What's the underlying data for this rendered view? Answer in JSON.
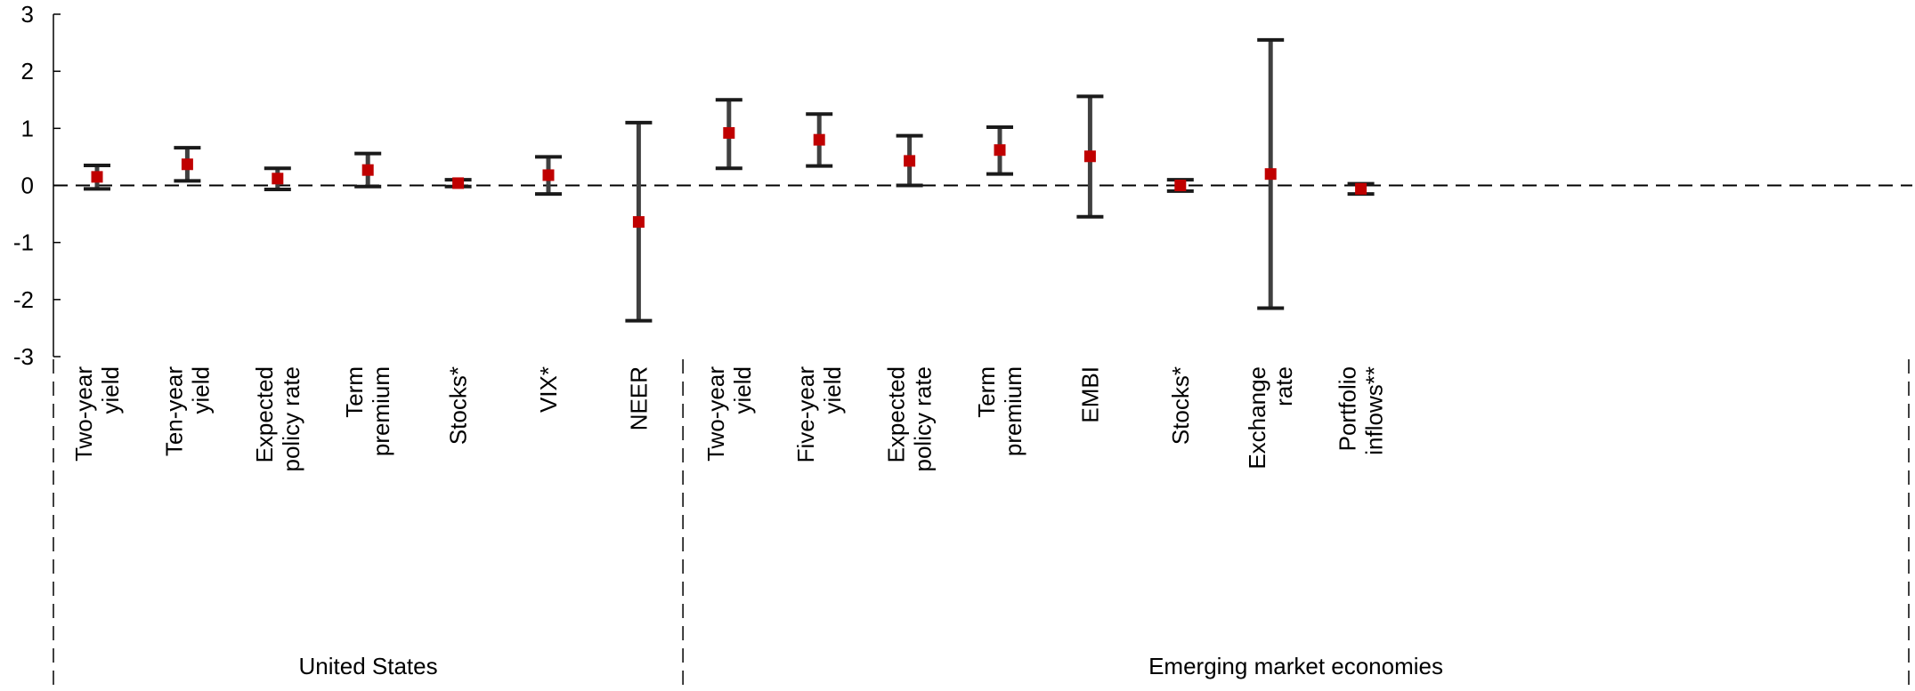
{
  "chart_data": {
    "type": "scatter",
    "title": "",
    "xlabel": "",
    "ylabel": "",
    "ylim": [
      -3,
      3
    ],
    "yticks": [
      3,
      2,
      1,
      0,
      -1,
      -2,
      -3
    ],
    "grid": false,
    "zero_line": "dashed",
    "colors": {
      "point": "#c00000",
      "errorbar": "#404040"
    },
    "groups": [
      {
        "label": "United States",
        "start": 0,
        "end": 7
      },
      {
        "label": "Emerging market economies",
        "start": 7,
        "end": 15
      }
    ],
    "categories": [
      [
        "Two-year",
        "yield"
      ],
      [
        "Ten-year",
        "yield"
      ],
      [
        "Expected",
        "policy rate"
      ],
      [
        "Term",
        "premium"
      ],
      [
        "Stocks*"
      ],
      [
        "VIX*"
      ],
      [
        "NEER"
      ],
      [
        "Two-year",
        "yield"
      ],
      [
        "Five-year",
        "yield"
      ],
      [
        "Expected",
        "policy rate"
      ],
      [
        "Term",
        "premium"
      ],
      [
        "EMBI"
      ],
      [
        "Stocks*"
      ],
      [
        "Exchange",
        "rate"
      ],
      [
        "Portfolio",
        "inflows**"
      ]
    ],
    "values": [
      0.15,
      0.37,
      0.12,
      0.27,
      0.04,
      0.18,
      -0.64,
      0.92,
      0.8,
      0.43,
      0.62,
      0.51,
      0.0,
      0.2,
      -0.06
    ],
    "lower": [
      -0.06,
      0.08,
      -0.07,
      -0.02,
      -0.02,
      -0.15,
      -2.37,
      0.3,
      0.34,
      0.0,
      0.2,
      -0.55,
      -0.1,
      -2.15,
      -0.15
    ],
    "upper": [
      0.35,
      0.66,
      0.3,
      0.56,
      0.1,
      0.5,
      1.1,
      1.5,
      1.25,
      0.87,
      1.02,
      1.56,
      0.1,
      2.55,
      0.03
    ]
  }
}
